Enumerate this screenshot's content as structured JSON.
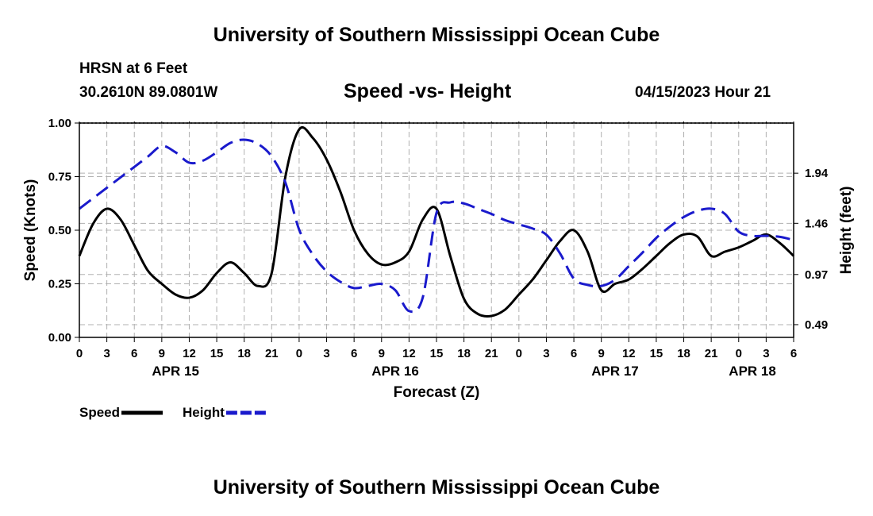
{
  "page": {
    "title": "University of Southern Mississippi Ocean Cube",
    "footer_title": "University of Southern Mississippi Ocean Cube",
    "station": "HRSN at 6 Feet",
    "coords": "30.2610N  89.0801W",
    "subtitle": "Speed -vs- Height",
    "datetime": "04/15/2023 Hour 21"
  },
  "chart_data": {
    "type": "line",
    "title": "Speed -vs- Height",
    "xlabel": "Forecast (Z)",
    "ylabel": "Speed (Knots)",
    "y2label": "Height (feet)",
    "xlim": [
      0,
      78
    ],
    "ylim": [
      0,
      1.0
    ],
    "y2lim": [
      0.368,
      2.42
    ],
    "grid": true,
    "x_tick_values": [
      0,
      3,
      6,
      9,
      12,
      15,
      18,
      21,
      24,
      27,
      30,
      33,
      36,
      39,
      42,
      45,
      48,
      51,
      54,
      57,
      60,
      63,
      66,
      69,
      72,
      75,
      78
    ],
    "x_tick_labels": [
      "0",
      "3",
      "6",
      "9",
      "12",
      "15",
      "18",
      "21",
      "0",
      "3",
      "6",
      "9",
      "12",
      "15",
      "18",
      "21",
      "0",
      "3",
      "6",
      "9",
      "12",
      "15",
      "18",
      "21",
      "0",
      "3",
      "6"
    ],
    "y_ticks": [
      0.0,
      0.25,
      0.5,
      0.75,
      1.0
    ],
    "y_tick_labels": [
      "0.00",
      "0.25",
      "0.50",
      "0.75",
      "1.00"
    ],
    "y2_ticks": [
      0.49,
      0.97,
      1.46,
      1.94
    ],
    "y2_tick_labels": [
      "0.49",
      "0.97",
      "1.46",
      "1.94"
    ],
    "date_labels": [
      {
        "label": "APR 15",
        "x": 10.5
      },
      {
        "label": "APR 16",
        "x": 34.5
      },
      {
        "label": "APR 17",
        "x": 58.5
      },
      {
        "label": "APR 18",
        "x": 73.5
      }
    ],
    "legend": [
      {
        "name": "Speed",
        "color": "#000000",
        "dashed": false
      },
      {
        "name": "Height",
        "color": "#1a1acc",
        "dashed": true
      }
    ],
    "series": [
      {
        "name": "Speed",
        "axis": "left",
        "color": "#000000",
        "x": [
          0,
          1.5,
          3,
          4.5,
          6,
          7.5,
          9,
          10.5,
          12,
          13.5,
          15,
          16.5,
          18,
          19.5,
          21,
          22.5,
          24,
          25.5,
          27,
          28.5,
          30,
          31.5,
          33,
          34.5,
          36,
          37.5,
          39,
          40.5,
          42,
          43.5,
          45,
          46.5,
          48,
          49.5,
          51,
          52.5,
          54,
          55.5,
          57,
          58.5,
          60,
          61.5,
          63,
          64.5,
          66,
          67.5,
          69,
          70.5,
          72,
          73.5,
          75,
          76.5,
          78
        ],
        "values": [
          0.38,
          0.53,
          0.6,
          0.55,
          0.43,
          0.31,
          0.25,
          0.2,
          0.185,
          0.22,
          0.3,
          0.35,
          0.3,
          0.24,
          0.3,
          0.75,
          0.97,
          0.93,
          0.83,
          0.68,
          0.5,
          0.39,
          0.34,
          0.35,
          0.4,
          0.55,
          0.6,
          0.38,
          0.18,
          0.11,
          0.1,
          0.13,
          0.2,
          0.27,
          0.36,
          0.45,
          0.5,
          0.4,
          0.22,
          0.25,
          0.27,
          0.32,
          0.38,
          0.44,
          0.48,
          0.47,
          0.38,
          0.4,
          0.42,
          0.45,
          0.48,
          0.44,
          0.38
        ]
      },
      {
        "name": "Height",
        "axis": "right",
        "color": "#1a1acc",
        "x": [
          0,
          1.5,
          3,
          4.5,
          6,
          7.5,
          9,
          10.5,
          12,
          13.5,
          15,
          16.5,
          18,
          19.5,
          21,
          22.5,
          24,
          25.5,
          27,
          28.5,
          30,
          31.5,
          33,
          34.5,
          36,
          37.5,
          39,
          40.5,
          42,
          43.5,
          45,
          46.5,
          48,
          49.5,
          51,
          52.5,
          54,
          55.5,
          57,
          58.5,
          60,
          61.5,
          63,
          64.5,
          66,
          67.5,
          69,
          70.5,
          72,
          73.5,
          75,
          76.5,
          78
        ],
        "values": [
          1.6,
          1.7,
          1.8,
          1.9,
          2.0,
          2.1,
          2.2,
          2.14,
          2.04,
          2.06,
          2.14,
          2.23,
          2.26,
          2.22,
          2.1,
          1.85,
          1.4,
          1.16,
          1.0,
          0.9,
          0.84,
          0.86,
          0.88,
          0.82,
          0.62,
          0.75,
          1.56,
          1.66,
          1.65,
          1.6,
          1.55,
          1.49,
          1.45,
          1.41,
          1.35,
          1.17,
          0.93,
          0.87,
          0.86,
          0.92,
          1.05,
          1.18,
          1.32,
          1.43,
          1.52,
          1.58,
          1.6,
          1.55,
          1.38,
          1.34,
          1.34,
          1.33,
          1.3
        ]
      }
    ]
  }
}
